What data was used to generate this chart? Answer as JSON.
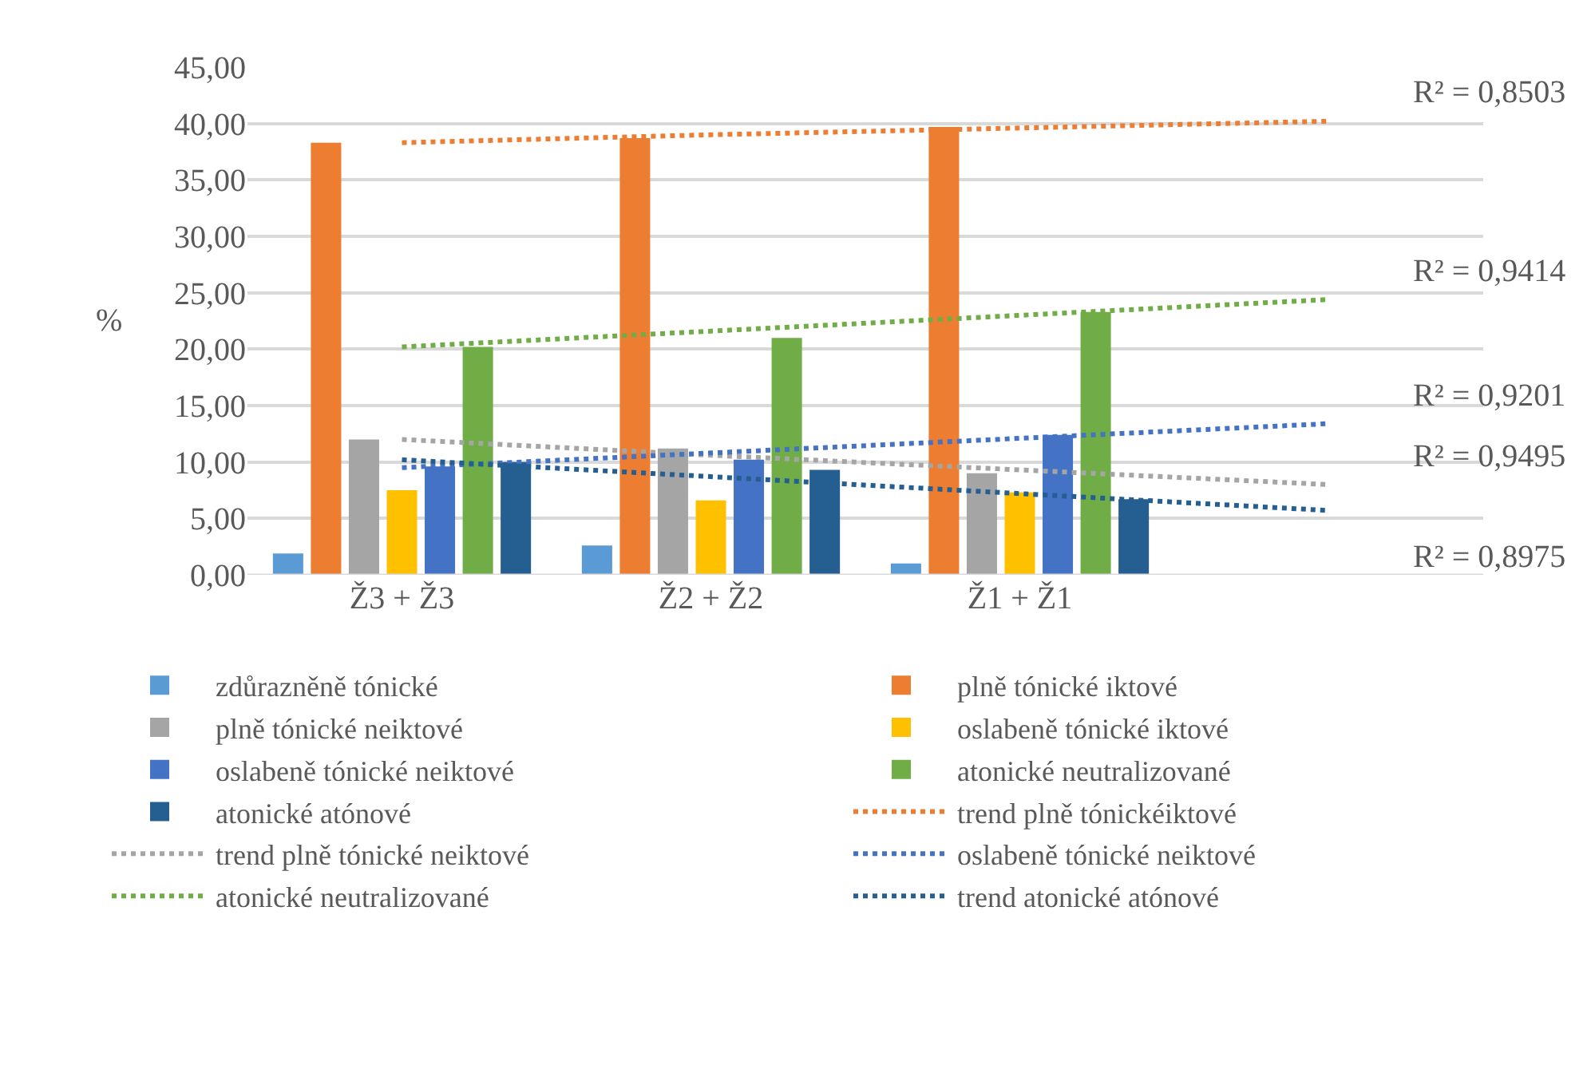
{
  "chart_data": {
    "type": "bar",
    "ylabel": "%",
    "categories": [
      "Ž3 + Ž3",
      "Ž2 + Ž2",
      "Ž1 + Ž1",
      null
    ],
    "ylim": [
      0,
      45
    ],
    "yticks": [
      {
        "value": 0,
        "label": "0,00"
      },
      {
        "value": 5,
        "label": "5,00"
      },
      {
        "value": 10,
        "label": "10,00"
      },
      {
        "value": 15,
        "label": "15,00"
      },
      {
        "value": 20,
        "label": "20,00"
      },
      {
        "value": 25,
        "label": "25,00"
      },
      {
        "value": 30,
        "label": "30,00"
      },
      {
        "value": 35,
        "label": "35,00"
      },
      {
        "value": 40,
        "label": "40,00"
      },
      {
        "value": 45,
        "label": "45,00"
      }
    ],
    "grid": "y",
    "legend": "bottom",
    "series": [
      {
        "name": "zdůrazněně tónické",
        "color": "#5b9bd5",
        "values": [
          1.9,
          2.6,
          1.0,
          null
        ]
      },
      {
        "name": "plně tónické iktové",
        "color": "#ed7d31",
        "values": [
          38.3,
          38.7,
          39.7,
          null
        ]
      },
      {
        "name": "plně tónické neiktové",
        "color": "#a5a5a5",
        "values": [
          12.0,
          11.2,
          9.0,
          null
        ]
      },
      {
        "name": "oslabeně tónické iktové",
        "color": "#ffc000",
        "values": [
          7.5,
          6.6,
          7.3,
          null
        ]
      },
      {
        "name": "oslabeně tónické neiktové",
        "color": "#4472c4",
        "values": [
          9.6,
          10.2,
          12.4,
          null
        ]
      },
      {
        "name": "atonické neutralizované",
        "color": "#70ad47",
        "values": [
          20.2,
          21.0,
          23.3,
          null
        ]
      },
      {
        "name": "atonické atónové",
        "color": "#255e91",
        "values": [
          10.0,
          9.3,
          6.7,
          null
        ]
      },
      {
        "name": "trend plně tónickéiktové",
        "type": "line",
        "line_style": "dotted",
        "color": "#ed7d31",
        "values": [
          38.3,
          39.0,
          39.6,
          40.2
        ]
      },
      {
        "name": "trend plně tónické neiktové",
        "type": "line",
        "line_style": "dotted",
        "color": "#a5a5a5",
        "values": [
          12.0,
          10.6,
          9.3,
          8.0
        ]
      },
      {
        "name": "oslabeně tónické neiktové",
        "type": "line",
        "line_style": "dotted",
        "color": "#4472c4",
        "values": [
          9.5,
          10.8,
          12.1,
          13.4
        ]
      },
      {
        "name": "atonické neutralizované",
        "type": "line",
        "line_style": "dotted",
        "color": "#70ad47",
        "values": [
          20.2,
          21.6,
          23.0,
          24.4
        ]
      },
      {
        "name": "trend atonické atónové",
        "type": "line",
        "line_style": "dotted",
        "color": "#255e91",
        "values": [
          10.2,
          8.7,
          7.2,
          5.7
        ]
      }
    ],
    "annotations": [
      "R² = 0,8503",
      "R² = 0,9414",
      "R² = 0,9201",
      "R² = 0,9495",
      "R² = 0,8975"
    ]
  }
}
